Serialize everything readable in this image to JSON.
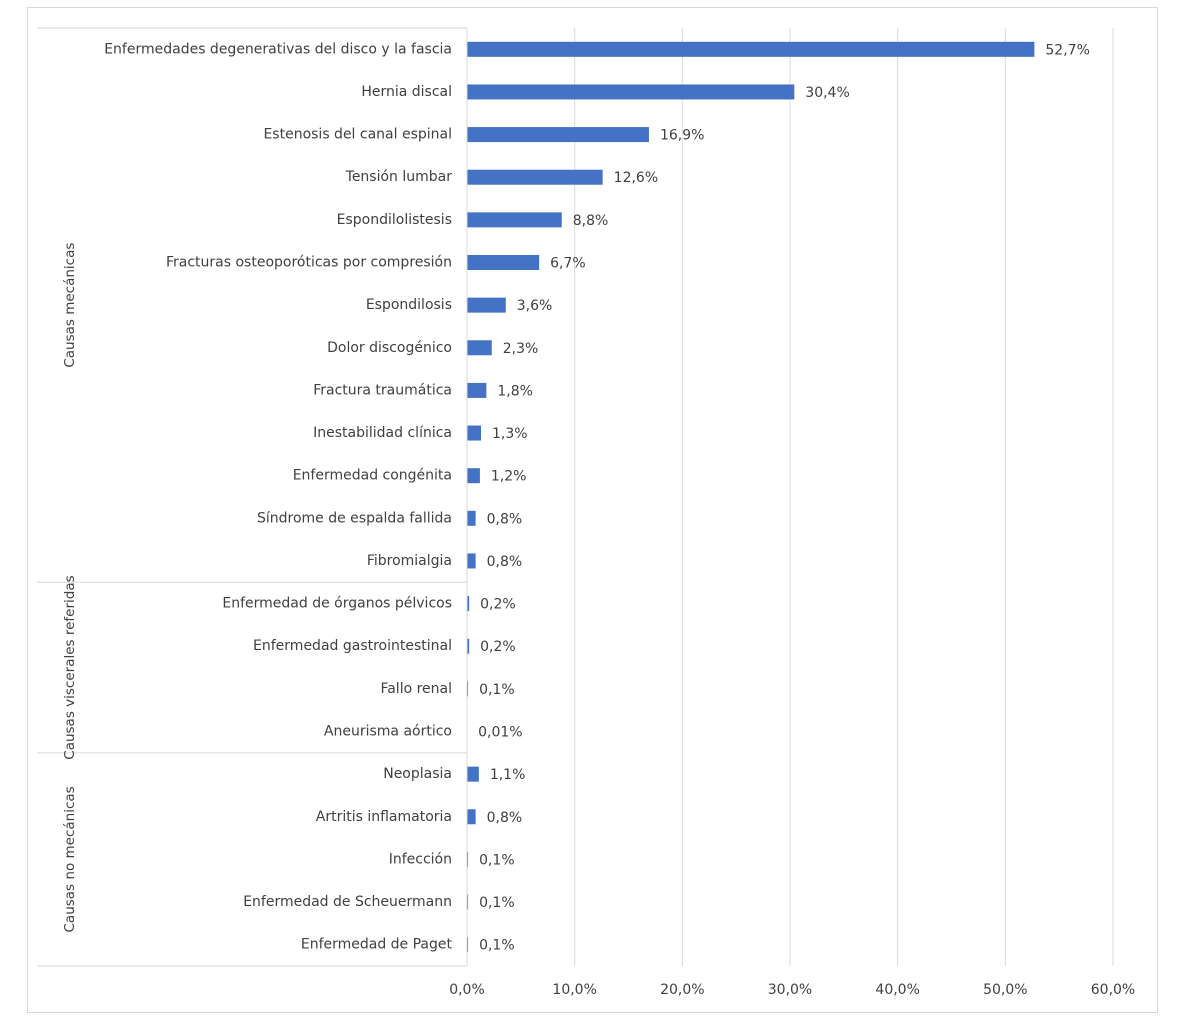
{
  "chart_data": {
    "type": "bar",
    "orientation": "horizontal",
    "color": "#4472c4",
    "grid": true,
    "xlim": [
      0,
      60
    ],
    "xticks": [
      {
        "value": 0,
        "label": "0,0%"
      },
      {
        "value": 10,
        "label": "10,0%"
      },
      {
        "value": 20,
        "label": "20,0%"
      },
      {
        "value": 30,
        "label": "30,0%"
      },
      {
        "value": 40,
        "label": "40,0%"
      },
      {
        "value": 50,
        "label": "50,0%"
      },
      {
        "value": 60,
        "label": "60,0%"
      }
    ],
    "groups": [
      {
        "name": "Causas mecánicas",
        "categories": [
          "Enfermedades degenerativas del disco y la fascia",
          "Hernia discal",
          "Estenosis del canal espinal",
          "Tensión lumbar",
          "Espondilolistesis",
          "Fracturas osteoporóticas por compresión",
          "Espondilosis",
          "Dolor discogénico",
          "Fractura traumática",
          "Inestabilidad clínica",
          "Enfermedad congénita",
          "Síndrome de espalda fallida",
          "Fibromialgia"
        ],
        "values": [
          52.7,
          30.4,
          16.9,
          12.6,
          8.8,
          6.7,
          3.6,
          2.3,
          1.8,
          1.3,
          1.2,
          0.8,
          0.8
        ],
        "value_labels": [
          "52,7%",
          "30,4%",
          "16,9%",
          "12,6%",
          "8,8%",
          "6,7%",
          "3,6%",
          "2,3%",
          "1,8%",
          "1,3%",
          "1,2%",
          "0,8%",
          "0,8%"
        ]
      },
      {
        "name": "Causas viscerales referidas",
        "categories": [
          "Enfermedad de órganos pélvicos",
          "Enfermedad gastrointestinal",
          "Fallo renal",
          "Aneurisma aórtico"
        ],
        "values": [
          0.2,
          0.2,
          0.1,
          0.01
        ],
        "value_labels": [
          "0,2%",
          "0,2%",
          "0,1%",
          "0,01%"
        ]
      },
      {
        "name": "Causas no mecánicas",
        "categories": [
          "Neoplasia",
          "Artritis inflamatoria",
          "Infección",
          "Enfermedad de Scheuermann",
          "Enfermedad de Paget"
        ],
        "values": [
          1.1,
          0.8,
          0.1,
          0.1,
          0.1
        ],
        "value_labels": [
          "1,1%",
          "0,8%",
          "0,1%",
          "0,1%",
          "0,1%"
        ]
      }
    ]
  }
}
